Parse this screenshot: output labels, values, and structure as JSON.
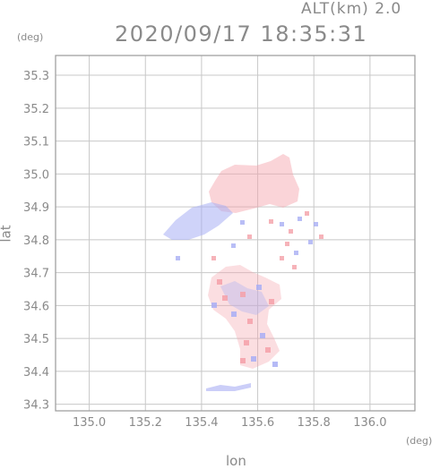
{
  "header": {
    "altitude_label": "ALT(km) 2.0",
    "datetime": "2020/09/17 18:35:31"
  },
  "axes": {
    "y_unit": "(deg)",
    "y_label": "lat",
    "x_unit": "(deg)",
    "x_label": "lon",
    "x_ticks": [
      {
        "value": 135.0,
        "label": "135.0"
      },
      {
        "value": 135.2,
        "label": "135.2"
      },
      {
        "value": 135.4,
        "label": "135.4"
      },
      {
        "value": 135.6,
        "label": "135.6"
      },
      {
        "value": 135.8,
        "label": "135.8"
      },
      {
        "value": 136.0,
        "label": "136.0"
      }
    ],
    "y_ticks": [
      {
        "value": 34.3,
        "label": "34.3"
      },
      {
        "value": 34.4,
        "label": "34.4"
      },
      {
        "value": 34.5,
        "label": "34.5"
      },
      {
        "value": 34.6,
        "label": "34.6"
      },
      {
        "value": 34.7,
        "label": "34.7"
      },
      {
        "value": 34.8,
        "label": "34.8"
      },
      {
        "value": 34.9,
        "label": "34.9"
      },
      {
        "value": 35.0,
        "label": "35.0"
      },
      {
        "value": 35.1,
        "label": "35.1"
      },
      {
        "value": 35.2,
        "label": "35.2"
      },
      {
        "value": 35.3,
        "label": "35.3"
      }
    ],
    "x_range": [
      134.88,
      136.16
    ],
    "y_range": [
      34.28,
      35.36
    ]
  },
  "colors": {
    "frame": "#9a9a9a",
    "grid": "#c8c8c8",
    "positive": "#f4a0a8",
    "negative": "#a8aef4"
  }
}
